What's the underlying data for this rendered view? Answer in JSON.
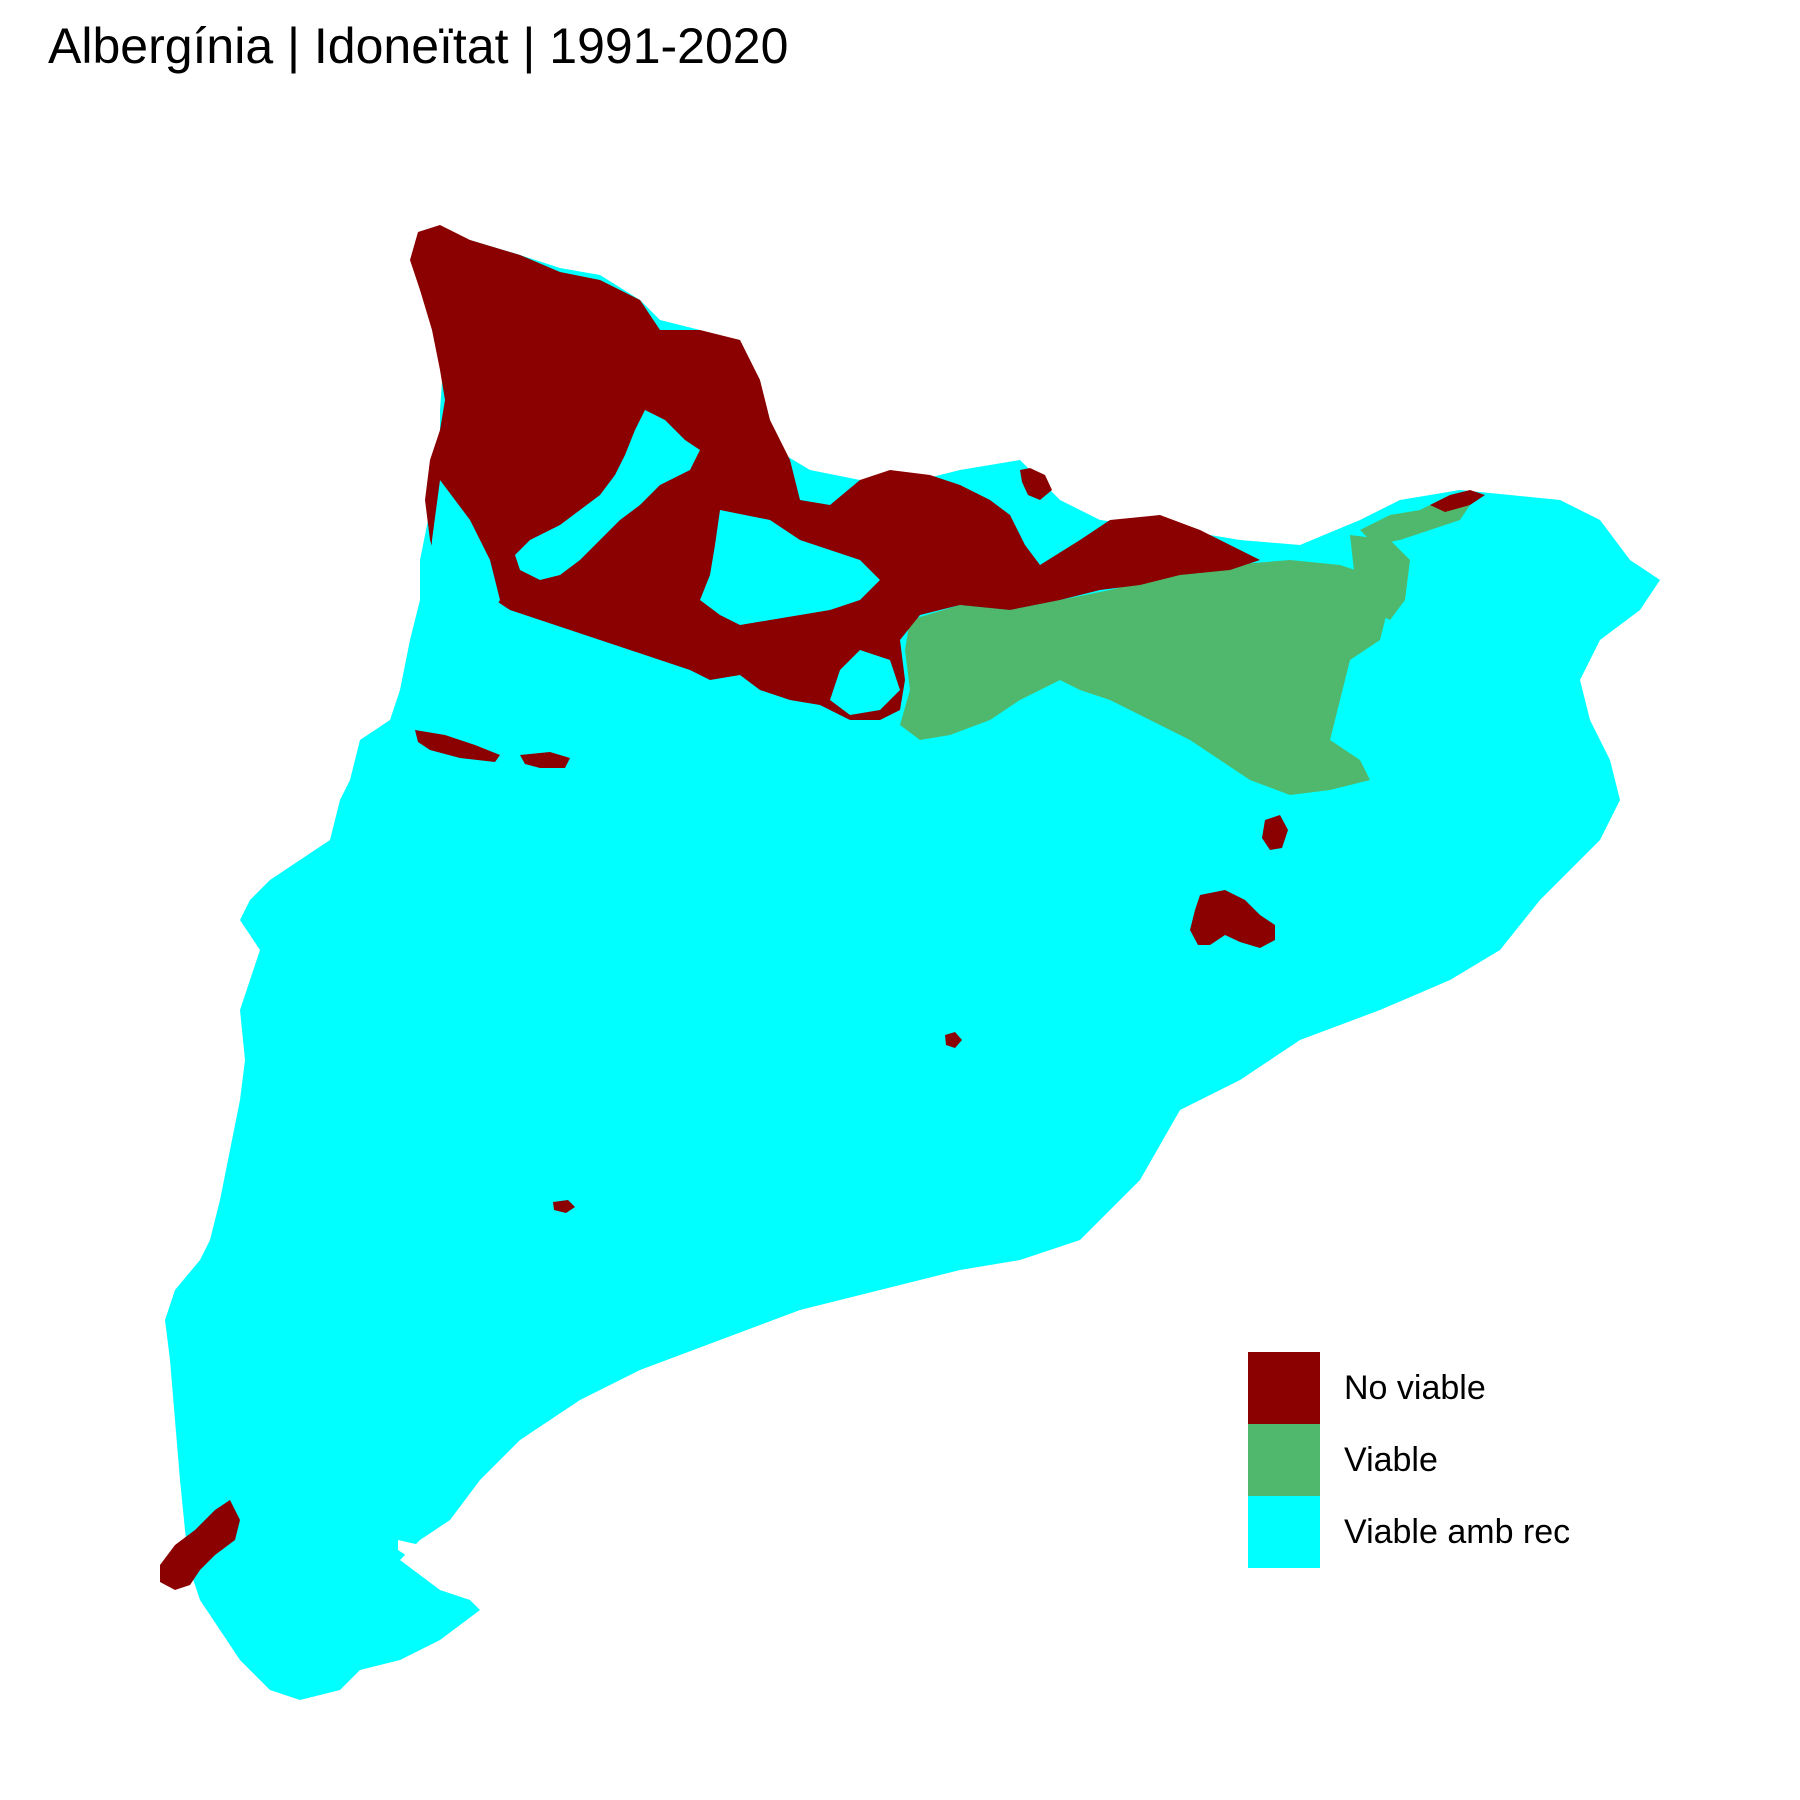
{
  "title": "Albergínia | Idoneïtat | 1991-2020",
  "legend": {
    "items": [
      {
        "label": "No viable",
        "color": "#8B0000"
      },
      {
        "label": "Viable",
        "color": "#50B86C"
      },
      {
        "label": "Viable amb rec",
        "color": "#00FFFF"
      }
    ]
  }
}
